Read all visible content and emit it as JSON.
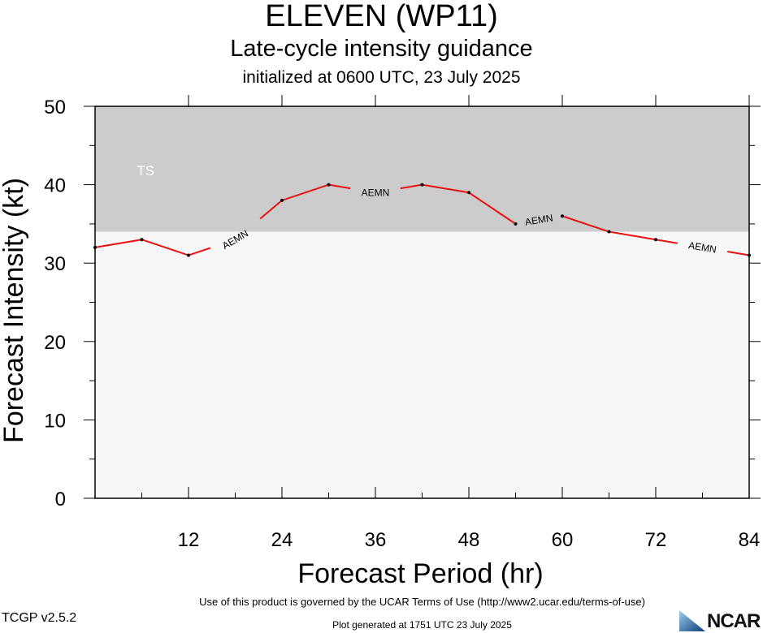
{
  "header": {
    "title": "ELEVEN (WP11)",
    "subtitle": "Late-cycle intensity guidance",
    "init_line": "initialized at 0600 UTC, 23 July 2025"
  },
  "footer": {
    "terms": "Use of this product is governed by the UCAR Terms of Use (http://www2.ucar.edu/terms-of-use)",
    "version": "TCGP v2.5.2",
    "generated": "Plot generated at 1751 UTC   23 July 2025",
    "logo_text": "NCAR"
  },
  "chart_data": {
    "type": "line",
    "title": "ELEVEN (WP11)",
    "xlabel": "Forecast Period (hr)",
    "ylabel": "Forecast Intensity (kt)",
    "xlim": [
      0,
      84
    ],
    "ylim": [
      0,
      50
    ],
    "x_ticks": [
      12,
      24,
      36,
      48,
      60,
      72,
      84
    ],
    "y_ticks": [
      0,
      10,
      20,
      30,
      40,
      50
    ],
    "bands": [
      {
        "label": "TS",
        "from": 34,
        "to": 50,
        "color": "#cccccc"
      },
      {
        "label": "",
        "from": 0,
        "to": 34,
        "color": "#f7f7f7"
      }
    ],
    "series": [
      {
        "name": "AEMN",
        "color": "#ee1111",
        "x": [
          0,
          6,
          12,
          18,
          24,
          30,
          36,
          42,
          48,
          54,
          60,
          66,
          72,
          78,
          84
        ],
        "y": [
          32,
          33,
          31,
          33,
          38,
          40,
          39,
          40,
          39,
          35,
          36,
          34,
          33,
          32,
          31
        ],
        "marker_x": [
          0,
          6,
          12,
          24,
          30,
          42,
          48,
          54,
          60,
          66,
          72,
          84
        ],
        "label_at": [
          18,
          36,
          57,
          78
        ]
      }
    ]
  }
}
